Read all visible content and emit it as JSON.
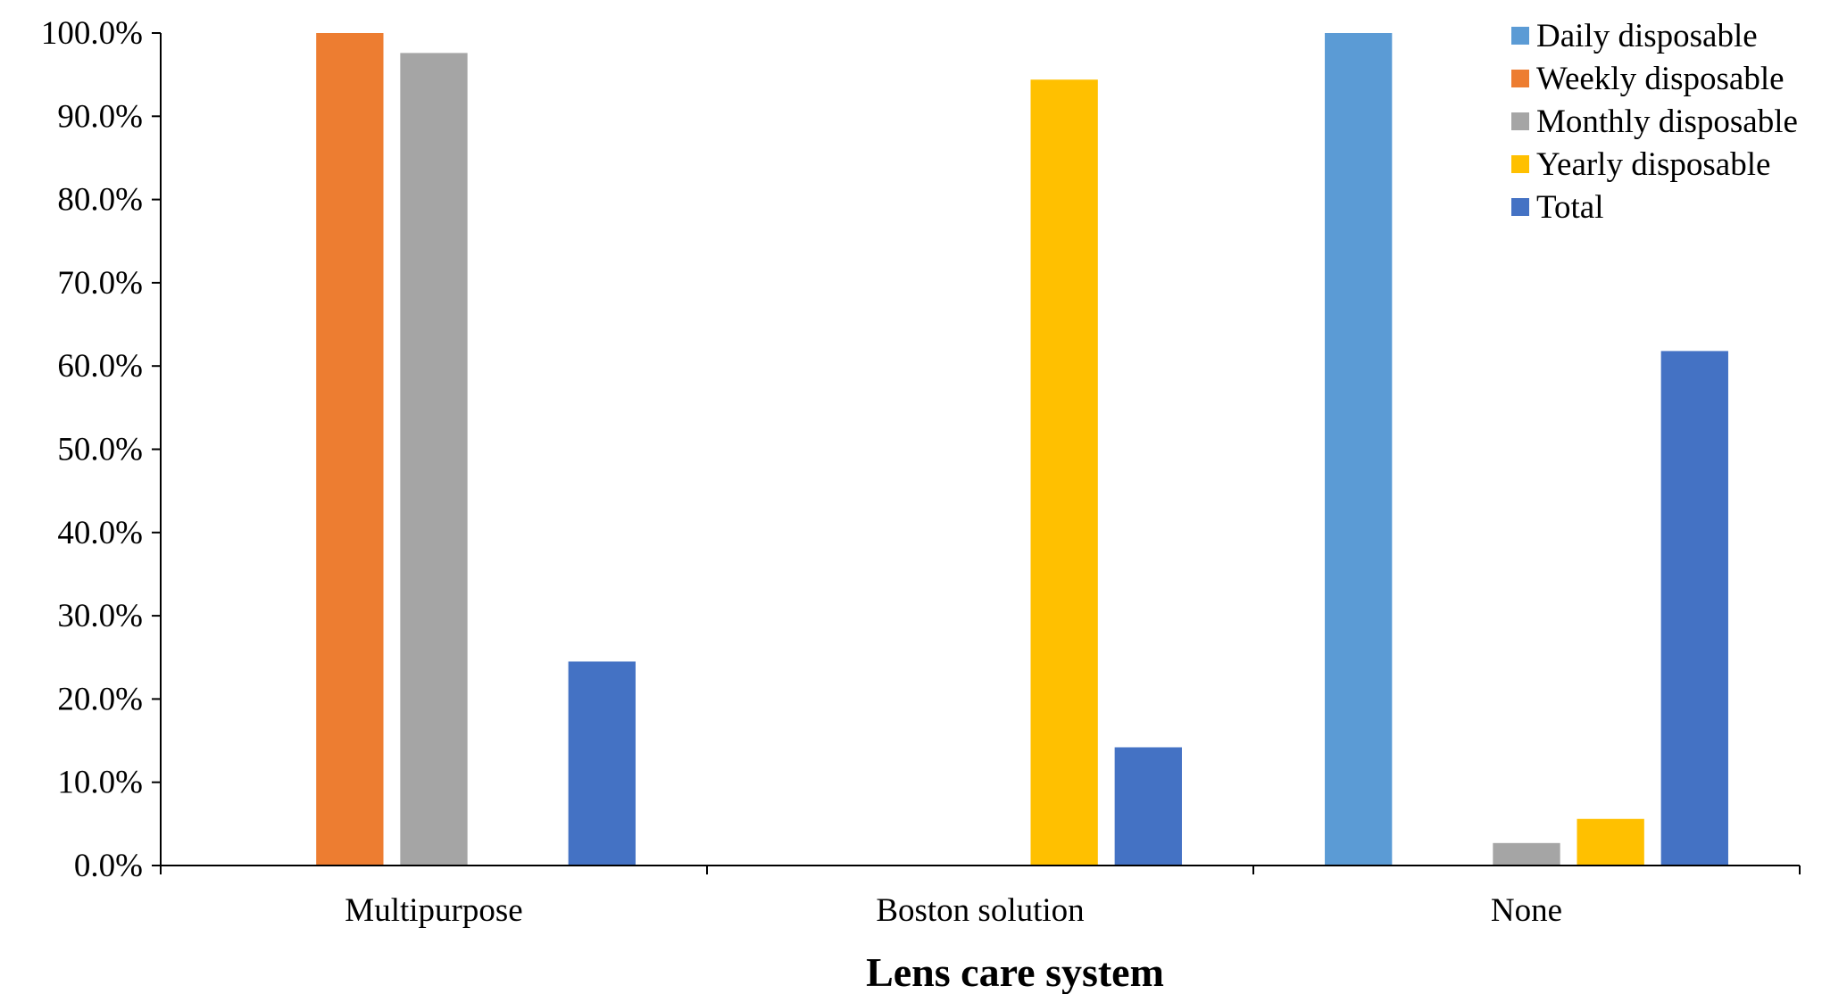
{
  "chart_data": {
    "type": "bar",
    "categories": [
      "Multipurpose",
      "Boston solution",
      "None"
    ],
    "series": [
      {
        "name": "Daily disposable",
        "color": "#5B9BD5",
        "values": [
          0,
          0,
          100.0
        ]
      },
      {
        "name": "Weekly disposable",
        "color": "#ED7D31",
        "values": [
          100.0,
          0,
          0
        ]
      },
      {
        "name": "Monthly disposable",
        "color": "#A5A5A5",
        "values": [
          97.6,
          0,
          2.7
        ]
      },
      {
        "name": "Yearly disposable",
        "color": "#FFC000",
        "values": [
          0,
          94.4,
          5.6
        ]
      },
      {
        "name": "Total",
        "color": "#4472C4",
        "values": [
          24.5,
          14.2,
          61.8
        ]
      }
    ],
    "yticks": [
      "0.0%",
      "10.0%",
      "20.0%",
      "30.0%",
      "40.0%",
      "50.0%",
      "60.0%",
      "70.0%",
      "80.0%",
      "90.0%",
      "100.0%"
    ],
    "ylim": [
      0,
      100
    ],
    "xlabel": "Lens care system",
    "ylabel": "",
    "title": "",
    "legend_position": "top-right",
    "grid": false
  }
}
